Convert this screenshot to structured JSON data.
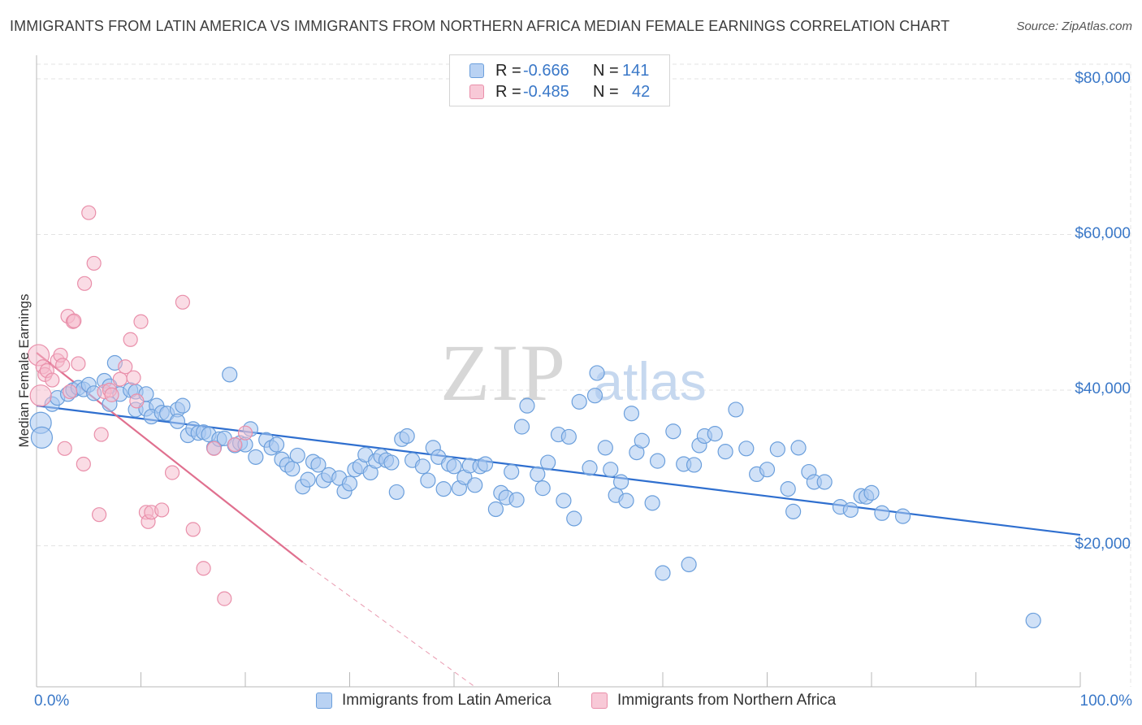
{
  "title": "IMMIGRANTS FROM LATIN AMERICA VS IMMIGRANTS FROM NORTHERN AFRICA MEDIAN FEMALE EARNINGS CORRELATION CHART",
  "source": "Source: ZipAtlas.com",
  "watermark": {
    "zip": "ZIP",
    "atlas": "atlas"
  },
  "legend": {
    "rows": [
      {
        "r_label": "R =",
        "r_value": "-0.666",
        "n_label": "N =",
        "n_value": "141"
      },
      {
        "r_label": "R =",
        "r_value": "-0.485",
        "n_label": "N =",
        "n_value": "42"
      }
    ]
  },
  "colors": {
    "blue_fill": "#a9c8f0",
    "blue_stroke": "#6b9fdc",
    "blue_line": "#2f6fcf",
    "pink_fill": "#f5b9cb",
    "pink_stroke": "#e98faa",
    "pink_line": "#e0708f",
    "tick_text": "#3a78c8",
    "grid": "#e3e3e3"
  },
  "chart_data": {
    "type": "scatter",
    "title": "IMMIGRANTS FROM LATIN AMERICA VS IMMIGRANTS FROM NORTHERN AFRICA MEDIAN FEMALE EARNINGS CORRELATION CHART",
    "xlabel": "",
    "ylabel": "Median Female Earnings",
    "xlim": [
      0,
      100
    ],
    "ylim": [
      0,
      80000
    ],
    "x_tick_labels": [
      "0.0%",
      "100.0%"
    ],
    "y_ticks": [
      20000,
      40000,
      60000,
      80000
    ],
    "y_tick_labels": [
      "$20,000",
      "$40,000",
      "$60,000",
      "$80,000"
    ],
    "grid": true,
    "series": [
      {
        "name": "Immigrants from Latin America",
        "color": "#a9c8f0",
        "trend": {
          "x": [
            0,
            100
          ],
          "y": [
            38000,
            21400
          ]
        },
        "points": [
          [
            0.4,
            35800
          ],
          [
            0.5,
            33900
          ],
          [
            1.5,
            38200
          ],
          [
            2.0,
            39000
          ],
          [
            3.0,
            39500
          ],
          [
            3.5,
            40000
          ],
          [
            4.0,
            40300
          ],
          [
            4.5,
            40100
          ],
          [
            5.0,
            40700
          ],
          [
            5.5,
            39600
          ],
          [
            6.5,
            41200
          ],
          [
            7.0,
            40500
          ],
          [
            7.5,
            43500
          ],
          [
            7.0,
            38200
          ],
          [
            8.0,
            39500
          ],
          [
            9.0,
            40000
          ],
          [
            9.5,
            39800
          ],
          [
            10.5,
            39500
          ],
          [
            9.5,
            37500
          ],
          [
            10.5,
            37600
          ],
          [
            11.5,
            38000
          ],
          [
            11.0,
            36600
          ],
          [
            12.0,
            37100
          ],
          [
            12.5,
            37000
          ],
          [
            13.5,
            37500
          ],
          [
            14.0,
            38000
          ],
          [
            13.5,
            36000
          ],
          [
            14.5,
            34200
          ],
          [
            15.0,
            35000
          ],
          [
            15.5,
            34500
          ],
          [
            16.0,
            34600
          ],
          [
            17.0,
            32600
          ],
          [
            16.5,
            34300
          ],
          [
            17.5,
            33700
          ],
          [
            18.0,
            33800
          ],
          [
            18.5,
            42000
          ],
          [
            19.0,
            32900
          ],
          [
            19.5,
            33200
          ],
          [
            20.0,
            33000
          ],
          [
            20.5,
            35000
          ],
          [
            21.0,
            31400
          ],
          [
            22.0,
            33600
          ],
          [
            22.5,
            32600
          ],
          [
            23.0,
            33000
          ],
          [
            23.5,
            31100
          ],
          [
            24.0,
            30400
          ],
          [
            24.5,
            29900
          ],
          [
            25.0,
            31600
          ],
          [
            25.5,
            27600
          ],
          [
            26.0,
            28500
          ],
          [
            26.5,
            30800
          ],
          [
            27.0,
            30400
          ],
          [
            27.5,
            28400
          ],
          [
            28.0,
            29100
          ],
          [
            29.0,
            28700
          ],
          [
            29.5,
            27000
          ],
          [
            30.0,
            28000
          ],
          [
            30.5,
            29800
          ],
          [
            31.0,
            30200
          ],
          [
            31.5,
            31700
          ],
          [
            32.0,
            29400
          ],
          [
            32.5,
            30900
          ],
          [
            33.0,
            31500
          ],
          [
            33.5,
            31000
          ],
          [
            34.0,
            30700
          ],
          [
            34.5,
            26900
          ],
          [
            35.0,
            33700
          ],
          [
            35.5,
            34100
          ],
          [
            36.0,
            31000
          ],
          [
            37.0,
            30200
          ],
          [
            37.5,
            28400
          ],
          [
            38.0,
            32600
          ],
          [
            38.5,
            31400
          ],
          [
            39.0,
            27300
          ],
          [
            39.5,
            30500
          ],
          [
            40.0,
            30200
          ],
          [
            40.5,
            27400
          ],
          [
            41.0,
            28800
          ],
          [
            41.5,
            30300
          ],
          [
            42.0,
            27800
          ],
          [
            42.5,
            30200
          ],
          [
            43.0,
            30500
          ],
          [
            44.0,
            24700
          ],
          [
            44.5,
            26800
          ],
          [
            45.0,
            26200
          ],
          [
            45.5,
            29500
          ],
          [
            46.0,
            25900
          ],
          [
            46.5,
            35300
          ],
          [
            47.0,
            38000
          ],
          [
            48.0,
            29200
          ],
          [
            48.5,
            27400
          ],
          [
            49.0,
            30700
          ],
          [
            50.0,
            34300
          ],
          [
            50.5,
            25800
          ],
          [
            51.0,
            34000
          ],
          [
            51.5,
            23500
          ],
          [
            52.0,
            38500
          ],
          [
            53.0,
            30000
          ],
          [
            53.5,
            39300
          ],
          [
            53.7,
            42200
          ],
          [
            54.5,
            32600
          ],
          [
            55.0,
            29800
          ],
          [
            55.5,
            26500
          ],
          [
            56.0,
            28200
          ],
          [
            56.5,
            25800
          ],
          [
            57.0,
            37000
          ],
          [
            57.5,
            32000
          ],
          [
            58.0,
            33500
          ],
          [
            59.0,
            25500
          ],
          [
            59.5,
            30900
          ],
          [
            60.0,
            16500
          ],
          [
            61.0,
            34700
          ],
          [
            62.0,
            30500
          ],
          [
            62.5,
            17600
          ],
          [
            63.0,
            30400
          ],
          [
            63.5,
            32900
          ],
          [
            64.0,
            34100
          ],
          [
            65.0,
            34400
          ],
          [
            66.0,
            32100
          ],
          [
            67.0,
            37500
          ],
          [
            68.0,
            32500
          ],
          [
            69.0,
            29200
          ],
          [
            70.0,
            29800
          ],
          [
            71.0,
            32400
          ],
          [
            72.0,
            27300
          ],
          [
            72.5,
            24400
          ],
          [
            73.0,
            32600
          ],
          [
            74.0,
            29500
          ],
          [
            74.5,
            28200
          ],
          [
            75.5,
            28200
          ],
          [
            77.0,
            25000
          ],
          [
            78.0,
            24600
          ],
          [
            79.0,
            26400
          ],
          [
            79.5,
            26300
          ],
          [
            80.0,
            26800
          ],
          [
            81.0,
            24200
          ],
          [
            83.0,
            23800
          ],
          [
            95.5,
            10400
          ]
        ]
      },
      {
        "name": "Immigrants from Northern Africa",
        "color": "#f5b9cb",
        "trend": {
          "x": [
            0,
            25.5
          ],
          "y": [
            44800,
            17900
          ],
          "dashed_to": {
            "x": 42,
            "y": 0
          }
        },
        "points": [
          [
            0.2,
            44500
          ],
          [
            0.4,
            39300
          ],
          [
            0.6,
            43000
          ],
          [
            0.8,
            42000
          ],
          [
            1.0,
            42500
          ],
          [
            1.5,
            41300
          ],
          [
            2.0,
            43800
          ],
          [
            2.3,
            44500
          ],
          [
            2.5,
            43200
          ],
          [
            2.7,
            32500
          ],
          [
            3.0,
            49500
          ],
          [
            3.2,
            39800
          ],
          [
            3.5,
            48800
          ],
          [
            3.6,
            48900
          ],
          [
            4.0,
            43400
          ],
          [
            4.5,
            30500
          ],
          [
            4.6,
            53700
          ],
          [
            5.0,
            62800
          ],
          [
            5.5,
            56300
          ],
          [
            6.0,
            24000
          ],
          [
            6.5,
            39800
          ],
          [
            7.0,
            40000
          ],
          [
            8.0,
            41400
          ],
          [
            8.5,
            43000
          ],
          [
            9.0,
            46500
          ],
          [
            9.3,
            41600
          ],
          [
            9.6,
            38600
          ],
          [
            10.0,
            48800
          ],
          [
            10.5,
            24300
          ],
          [
            10.7,
            23100
          ],
          [
            11.0,
            24300
          ],
          [
            12.0,
            24600
          ],
          [
            13.0,
            29400
          ],
          [
            14.0,
            51300
          ],
          [
            15.0,
            22100
          ],
          [
            16.0,
            17100
          ],
          [
            17.0,
            32500
          ],
          [
            18.0,
            13200
          ],
          [
            19.0,
            33000
          ],
          [
            20.0,
            34500
          ],
          [
            6.2,
            34300
          ],
          [
            7.2,
            39400
          ]
        ]
      }
    ]
  }
}
